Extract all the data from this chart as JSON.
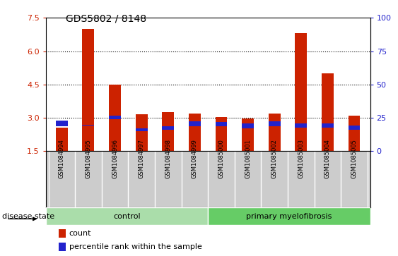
{
  "title": "GDS5802 / 8148",
  "samples": [
    "GSM1084994",
    "GSM1084995",
    "GSM1084996",
    "GSM1084997",
    "GSM1084998",
    "GSM1084999",
    "GSM1085000",
    "GSM1085001",
    "GSM1085002",
    "GSM1085003",
    "GSM1085004",
    "GSM1085005"
  ],
  "count_values": [
    2.55,
    7.0,
    4.5,
    3.15,
    3.25,
    3.18,
    3.02,
    2.97,
    3.18,
    6.8,
    5.0,
    3.1
  ],
  "percentile_values": [
    2.62,
    2.65,
    2.95,
    2.38,
    2.45,
    2.62,
    2.62,
    2.52,
    2.62,
    2.55,
    2.55,
    2.45
  ],
  "blue_bar_heights": [
    0.26,
    0.03,
    0.16,
    0.14,
    0.18,
    0.23,
    0.2,
    0.23,
    0.22,
    0.2,
    0.2,
    0.2
  ],
  "ylim": [
    1.5,
    7.5
  ],
  "yticks": [
    1.5,
    3.0,
    4.5,
    6.0,
    7.5
  ],
  "right_yticks": [
    0,
    25,
    50,
    75,
    100
  ],
  "right_ylim": [
    0,
    100
  ],
  "bar_color": "#cc2200",
  "blue_color": "#2222cc",
  "control_color": "#aaddaa",
  "primary_color": "#66cc66",
  "left_axis_color": "#cc2200",
  "right_axis_color": "#2222cc",
  "control_samples": 6,
  "disease_label": "disease state",
  "control_label": "control",
  "primary_label": "primary myelofibrosis",
  "legend_count": "count",
  "legend_percentile": "percentile rank within the sample",
  "bar_width": 0.45,
  "label_bg": "#cccccc",
  "label_sep_color": "#bbbbbb"
}
